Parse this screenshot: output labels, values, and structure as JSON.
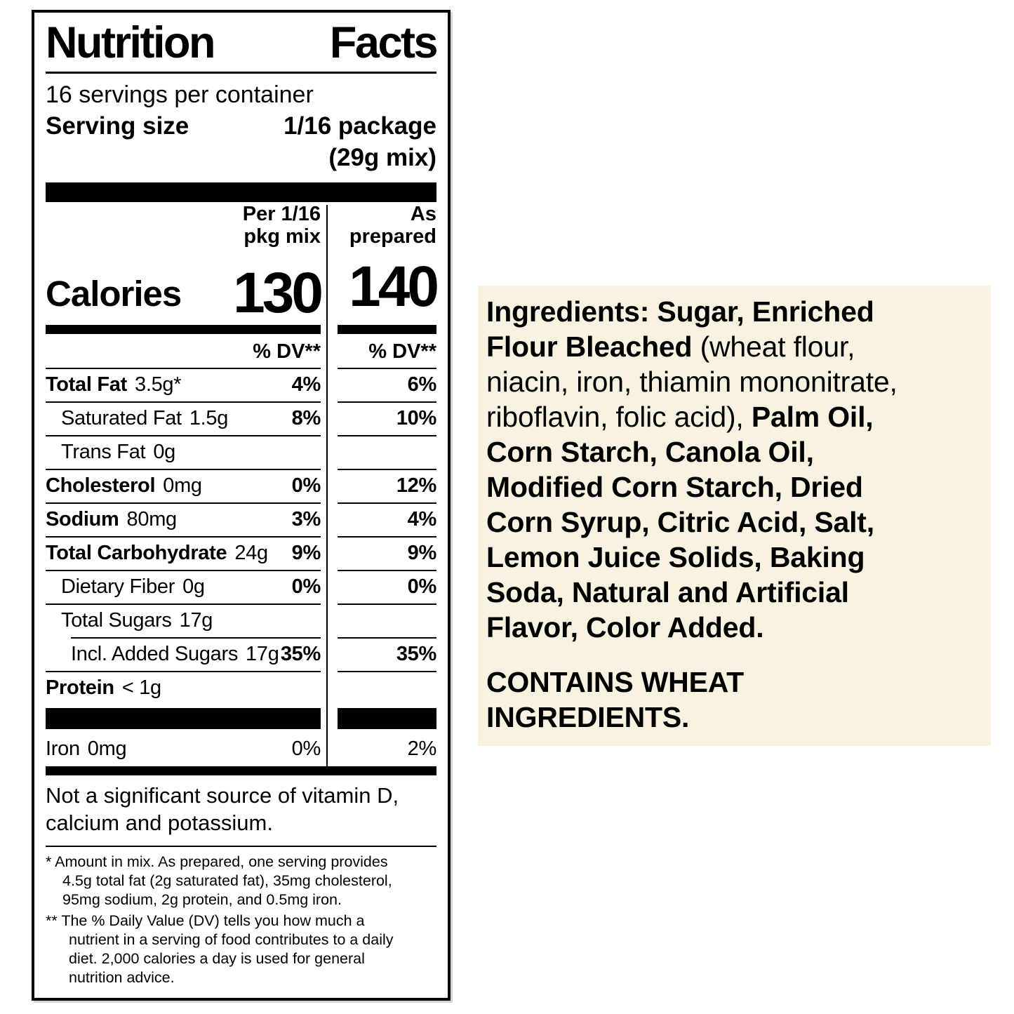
{
  "label": {
    "title_words": [
      "Nutrition",
      "Facts"
    ],
    "servings_per_container": "16 servings per container",
    "serving_size_label": "Serving size",
    "serving_size_value": "1/16 package",
    "serving_size_weight": "(29g mix)",
    "col1_header": "Per 1/16\npkg mix",
    "col2_header": "As\nprepared",
    "calories_label": "Calories",
    "calories_mix": "130",
    "calories_prepared": "140",
    "dv_header": "% DV**",
    "rows": [
      {
        "name": "Total Fat",
        "amount": "3.5g*",
        "dv_mix": "4%",
        "dv_prepared": "6%",
        "name_bold": true,
        "dv_bold": true,
        "level": 0,
        "top_rule": "full"
      },
      {
        "name": "Saturated Fat",
        "amount": "1.5g",
        "dv_mix": "8%",
        "dv_prepared": "10%",
        "name_bold": false,
        "dv_bold": true,
        "level": 1,
        "top_rule": "full"
      },
      {
        "name": "Trans Fat",
        "amount": "0g",
        "dv_mix": "",
        "dv_prepared": "",
        "name_bold": false,
        "dv_bold": true,
        "level": 1,
        "top_rule": "full"
      },
      {
        "name": "Cholesterol",
        "amount": "0mg",
        "dv_mix": "0%",
        "dv_prepared": "12%",
        "name_bold": true,
        "dv_bold": true,
        "level": 0,
        "top_rule": "full"
      },
      {
        "name": "Sodium",
        "amount": "80mg",
        "dv_mix": "3%",
        "dv_prepared": "4%",
        "name_bold": true,
        "dv_bold": true,
        "level": 0,
        "top_rule": "full"
      },
      {
        "name": "Total Carbohydrate",
        "amount": "24g",
        "dv_mix": "9%",
        "dv_prepared": "9%",
        "name_bold": true,
        "dv_bold": true,
        "level": 0,
        "top_rule": "full"
      },
      {
        "name": "Dietary Fiber",
        "amount": "0g",
        "dv_mix": "0%",
        "dv_prepared": "0%",
        "name_bold": false,
        "dv_bold": true,
        "level": 1,
        "top_rule": "full"
      },
      {
        "name": "Total Sugars",
        "amount": "17g",
        "dv_mix": "",
        "dv_prepared": "",
        "name_bold": false,
        "dv_bold": true,
        "level": 1,
        "top_rule": "full"
      },
      {
        "name": "Incl. Added Sugars",
        "amount": "17g",
        "dv_mix": "35%",
        "dv_prepared": "35%",
        "name_bold": false,
        "dv_bold": true,
        "level": 2,
        "top_rule": "indent"
      },
      {
        "name": "Protein",
        "amount": "< 1g",
        "dv_mix": "",
        "dv_prepared": "",
        "name_bold": true,
        "dv_bold": true,
        "level": 0,
        "top_rule": "full"
      }
    ],
    "mineral_rows": [
      {
        "name": "Iron",
        "amount": "0mg",
        "dv_mix": "0%",
        "dv_prepared": "2%",
        "name_bold": false,
        "dv_bold": false,
        "level": 0,
        "top_rule": "none"
      }
    ],
    "not_significant": "Not a significant source of vitamin D,\ncalcium and potassium.",
    "footnotes": [
      "* Amount in mix. As prepared, one serving provides\n4.5g total fat (2g saturated fat), 35mg cholesterol,\n95mg sodium, 2g protein, and 0.5mg iron.",
      "** The % Daily Value (DV) tells you how much a\nnutrient in a serving of food contributes to a daily\ndiet. 2,000 calories a day is used for general\nnutrition advice."
    ]
  },
  "ingredients": {
    "segments": [
      {
        "text": "Ingredients: Sugar, Enriched\nFlour Bleached ",
        "bold": true
      },
      {
        "text": "(wheat flour,\nniacin, iron, thiamin mononitrate,\nriboflavin, folic acid), ",
        "bold": false
      },
      {
        "text": "Palm Oil,\nCorn Starch, Canola Oil,\nModified Corn Starch, Dried\nCorn Syrup, Citric Acid, Salt,\nLemon Juice Solids, Baking\nSoda, Natural and Artificial\nFlavor, Color Added.",
        "bold": true
      }
    ],
    "allergen": "CONTAINS WHEAT\nINGREDIENTS."
  },
  "colors": {
    "text": "#000000",
    "label_background": "#ffffff",
    "ingredients_background": "#f9f2e0",
    "rule": "#000000"
  }
}
